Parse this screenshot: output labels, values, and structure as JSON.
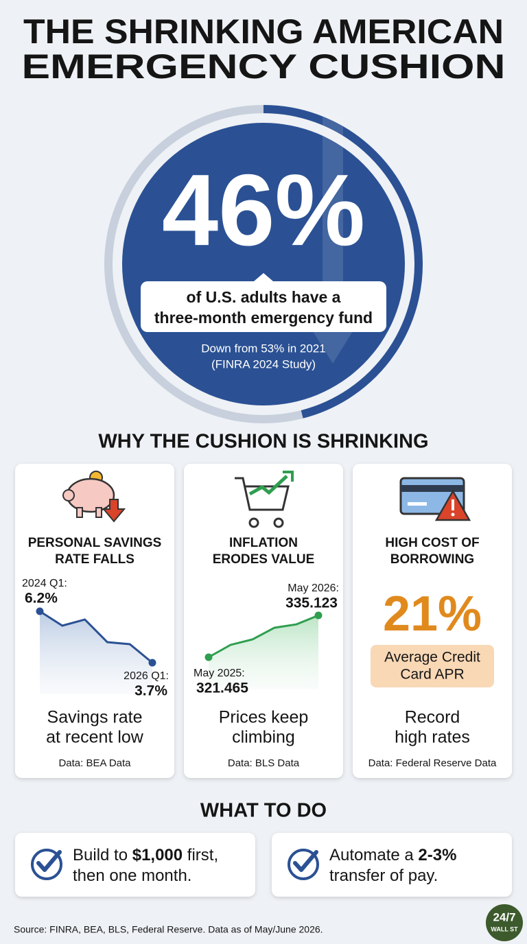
{
  "header": {
    "title_lines": [
      "THE SHRINKING AMERICAN",
      "EMERGENCY CUSHION"
    ]
  },
  "headline": {
    "value": 46,
    "label": "46%",
    "caption_lines": [
      "of U.S. adults have a",
      "three-month emergency fund"
    ],
    "note_lines": [
      "Down from 53% in 2021",
      "(FINRA 2024 Study)"
    ]
  },
  "section_title": "WHY THE CUSHION IS SHRINKING",
  "cards": [
    {
      "title_lines": [
        "PERSONAL SAVINGS",
        "RATE FALLS"
      ],
      "chart": {
        "type": "line",
        "color": "#2b5194",
        "x": [
          "2024 Q1:",
          null,
          null,
          null,
          null,
          "2026 Q1:"
        ],
        "values": [
          6.2,
          5.5,
          5.8,
          4.7,
          4.6,
          3.7
        ],
        "value_labels": [
          "6.2%",
          null,
          null,
          null,
          null,
          "3.7%"
        ]
      },
      "summary_lines": [
        "Savings rate",
        "at recent low"
      ],
      "source": "Data: BEA Data"
    },
    {
      "title_lines": [
        "INFLATION",
        "ERODES VALUE"
      ],
      "chart": {
        "type": "line",
        "color": "#2e9e4f",
        "x": [
          "May 2025:",
          null,
          null,
          null,
          null,
          "May 2026:"
        ],
        "values": [
          321.465,
          325.5,
          327.3,
          331.1,
          332.2,
          335.123
        ],
        "value_labels": [
          "321.465",
          null,
          null,
          null,
          null,
          "335.123"
        ]
      },
      "summary_lines": [
        "Prices keep",
        "climbing"
      ],
      "source": "Data: BLS Data"
    },
    {
      "title_lines": [
        "HIGH COST OF",
        "BORROWING"
      ],
      "stat": "21%",
      "stat_caption_lines": [
        "Average Credit",
        "Card APR"
      ],
      "summary_lines": [
        "Record",
        "high rates"
      ],
      "source": "Data: Federal Reserve Data"
    }
  ],
  "actions_title": "WHAT TO DO",
  "tips": [
    {
      "lines": [
        [
          {
            "text": "Build to "
          },
          {
            "text": "$1,000",
            "bold": true
          },
          {
            "text": " first,"
          }
        ],
        [
          {
            "text": "then one month."
          }
        ]
      ]
    },
    {
      "lines": [
        [
          {
            "text": "Automate a "
          },
          {
            "text": "2-3%",
            "bold": true
          }
        ],
        [
          {
            "text": "transfer of pay."
          }
        ]
      ]
    }
  ],
  "footer": {
    "source": "Source: FINRA, BEA, BLS, Federal Reserve. Data as of May/June 2026.",
    "logo": [
      "24/7",
      "WALL ST"
    ]
  }
}
